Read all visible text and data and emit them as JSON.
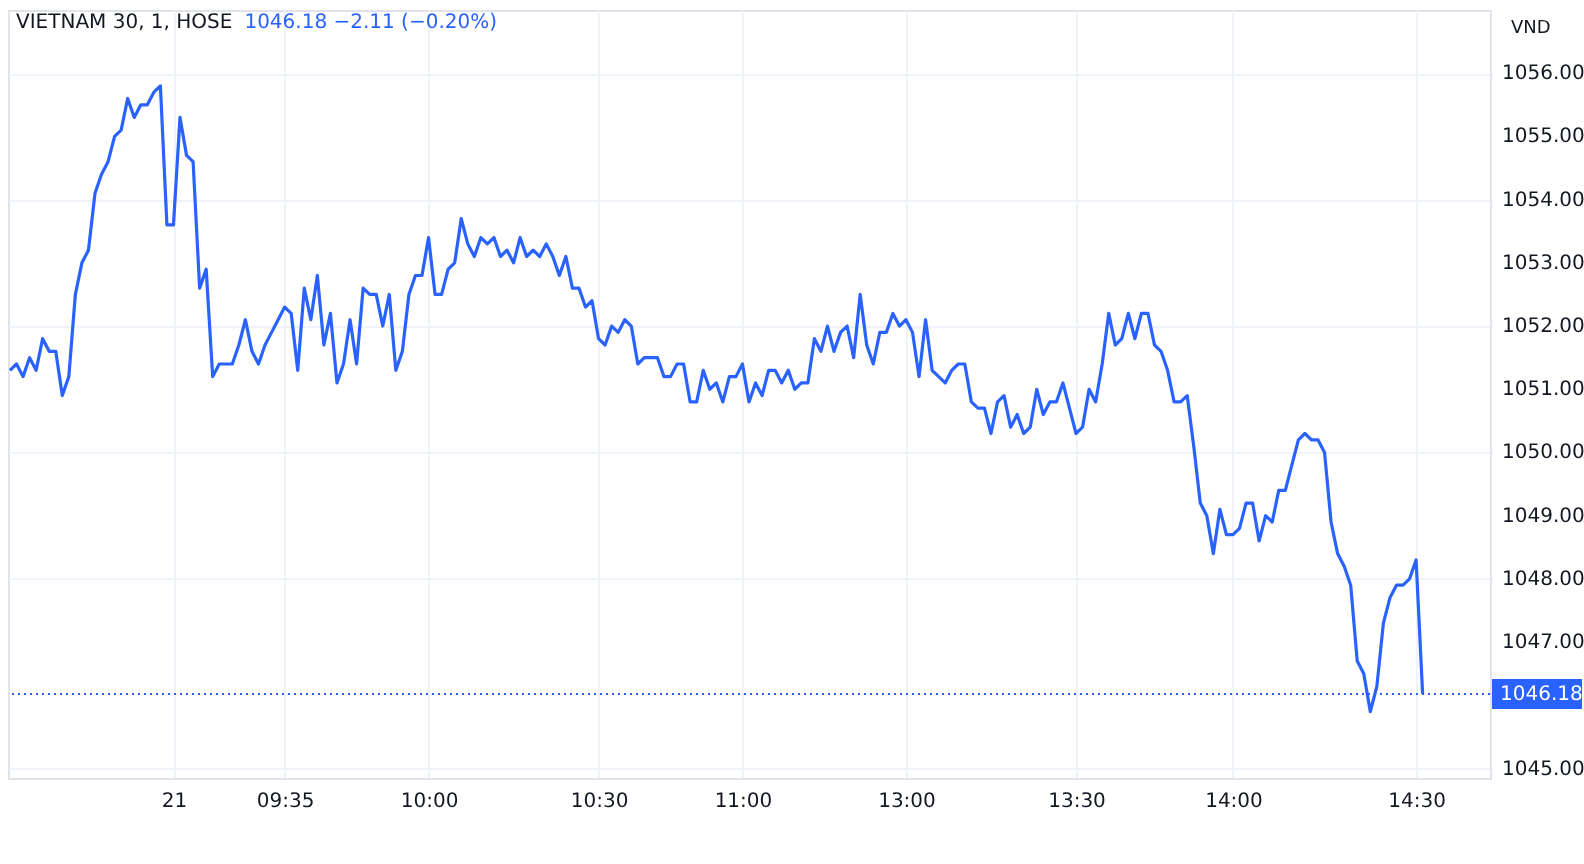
{
  "chart_data": {
    "type": "line",
    "title": "VIETNAM 30, 1, HOSE",
    "subtitle": "1046.18 −2.11 (−0.20%)",
    "ylabel": "VND",
    "categories": [
      null,
      null,
      null,
      null,
      null,
      null,
      null,
      null,
      null,
      null,
      null,
      null,
      null,
      null,
      null,
      null,
      null,
      null,
      null,
      null,
      null,
      null,
      null,
      null,
      null,
      "21",
      null,
      null,
      null,
      null,
      null,
      null,
      null,
      null,
      null,
      null,
      null,
      null,
      null,
      null,
      null,
      null,
      "09:35",
      null,
      null,
      null,
      null,
      null,
      null,
      null,
      null,
      null,
      null,
      null,
      null,
      null,
      null,
      null,
      null,
      null,
      null,
      null,
      null,
      null,
      "10:00",
      null,
      null,
      null,
      null,
      null,
      null,
      null,
      null,
      null,
      null,
      null,
      null,
      null,
      null,
      null,
      null,
      null,
      null,
      null,
      null,
      null,
      null,
      null,
      null,
      null,
      "10:30",
      null,
      null,
      null,
      null,
      null,
      null,
      null,
      null,
      null,
      null,
      null,
      null,
      null,
      null,
      null,
      null,
      null,
      null,
      null,
      null,
      null,
      "11:00",
      null,
      null,
      null,
      null,
      null,
      null,
      null,
      null,
      null,
      null,
      null,
      null,
      null,
      null,
      null,
      null,
      null,
      null,
      null,
      null,
      null,
      null,
      null,
      null,
      "13:00",
      null,
      null,
      null,
      null,
      null,
      null,
      null,
      null,
      null,
      null,
      null,
      null,
      null,
      null,
      null,
      null,
      null,
      null,
      null,
      null,
      null,
      null,
      null,
      null,
      null,
      "13:30",
      null,
      null,
      null,
      null,
      null,
      null,
      null,
      null,
      null,
      null,
      null,
      null,
      null,
      null,
      null,
      null,
      null,
      null,
      null,
      null,
      null,
      null,
      null,
      "14:00",
      null,
      null,
      null,
      null,
      null,
      null,
      null,
      null,
      null,
      null,
      null,
      null,
      null,
      null,
      null,
      null,
      null,
      null,
      null,
      null,
      null,
      null,
      null,
      null,
      null,
      null,
      null,
      "14:30",
      null,
      null,
      null,
      null,
      null,
      null,
      null,
      null,
      null,
      null,
      null
    ],
    "series": [
      {
        "color": "#2962ff",
        "values": [
          1051.3,
          1051.4,
          1051.2,
          1051.5,
          1051.3,
          1051.8,
          1051.6,
          1051.6,
          1050.9,
          1051.2,
          1052.5,
          1053.0,
          1053.2,
          1054.1,
          1054.4,
          1054.6,
          1055.0,
          1055.1,
          1055.6,
          1055.3,
          1055.5,
          1055.5,
          1055.7,
          1055.8,
          1053.6,
          1053.6,
          1055.3,
          1054.7,
          1054.6,
          1052.6,
          1052.9,
          1051.2,
          1051.4,
          1051.4,
          1051.4,
          1051.7,
          1052.1,
          1051.6,
          1051.4,
          1051.7,
          1051.9,
          1052.1,
          1052.3,
          1052.2,
          1051.3,
          1052.6,
          1052.1,
          1052.8,
          1051.7,
          1052.2,
          1051.1,
          1051.4,
          1052.1,
          1051.4,
          1052.6,
          1052.5,
          1052.5,
          1052.0,
          1052.5,
          1051.3,
          1051.6,
          1052.5,
          1052.8,
          1052.8,
          1053.4,
          1052.5,
          1052.5,
          1052.9,
          1053.0,
          1053.7,
          1053.3,
          1053.1,
          1053.4,
          1053.3,
          1053.4,
          1053.1,
          1053.2,
          1053.0,
          1053.4,
          1053.1,
          1053.2,
          1053.1,
          1053.3,
          1053.1,
          1052.8,
          1053.1,
          1052.6,
          1052.6,
          1052.3,
          1052.4,
          1051.8,
          1051.7,
          1052.0,
          1051.9,
          1052.1,
          1052.0,
          1051.4,
          1051.5,
          1051.5,
          1051.5,
          1051.2,
          1051.2,
          1051.4,
          1051.4,
          1050.8,
          1050.8,
          1051.3,
          1051.0,
          1051.1,
          1050.8,
          1051.2,
          1051.2,
          1051.4,
          1050.8,
          1051.1,
          1050.9,
          1051.3,
          1051.3,
          1051.1,
          1051.3,
          1051.0,
          1051.1,
          1051.1,
          1051.8,
          1051.6,
          1052.0,
          1051.6,
          1051.9,
          1052.0,
          1051.5,
          1052.5,
          1051.7,
          1051.4,
          1051.9,
          1051.9,
          1052.2,
          1052.0,
          1052.1,
          1051.9,
          1051.2,
          1052.1,
          1051.3,
          1051.2,
          1051.1,
          1051.3,
          1051.4,
          1051.4,
          1050.8,
          1050.7,
          1050.7,
          1050.3,
          1050.8,
          1050.9,
          1050.4,
          1050.6,
          1050.3,
          1050.4,
          1051.0,
          1050.6,
          1050.8,
          1050.8,
          1051.1,
          1050.7,
          1050.3,
          1050.4,
          1051.0,
          1050.8,
          1051.4,
          1052.2,
          1051.7,
          1051.8,
          1052.2,
          1051.8,
          1052.2,
          1052.2,
          1051.7,
          1051.6,
          1051.3,
          1050.8,
          1050.8,
          1050.9,
          1050.1,
          1049.2,
          1049.0,
          1048.4,
          1049.1,
          1048.7,
          1048.7,
          1048.8,
          1049.2,
          1049.2,
          1048.6,
          1049.0,
          1048.9,
          1049.4,
          1049.4,
          1049.8,
          1050.2,
          1050.3,
          1050.2,
          1050.2,
          1050.0,
          1048.9,
          1048.4,
          1048.2,
          1047.9,
          1046.7,
          1046.5,
          1045.9,
          1046.3,
          1047.3,
          1047.7,
          1047.9,
          1047.9,
          1048.0,
          1048.3,
          1046.18,
          null,
          null,
          null,
          null,
          null,
          null,
          null,
          null,
          null,
          null
        ]
      }
    ],
    "ylim": [
      1044.85,
      1057
    ],
    "yticks": [
      {
        "value": 1045,
        "label": "1045.00"
      },
      {
        "value": 1047,
        "label": "1047.00"
      },
      {
        "value": 1048,
        "label": "1048.00"
      },
      {
        "value": 1049,
        "label": "1049.00"
      },
      {
        "value": 1050,
        "label": "1050.00"
      },
      {
        "value": 1051,
        "label": "1051.00"
      },
      {
        "value": 1052,
        "label": "1052.00"
      },
      {
        "value": 1053,
        "label": "1053.00"
      },
      {
        "value": 1054,
        "label": "1054.00"
      },
      {
        "value": 1055,
        "label": "1055.00"
      },
      {
        "value": 1056,
        "label": "1056.00"
      }
    ],
    "grid": true,
    "ref_lines": [
      {
        "axis": "y",
        "value": 1046.18,
        "label": "1046.18",
        "color": "#2962ff",
        "line_style": "dotted"
      }
    ]
  }
}
